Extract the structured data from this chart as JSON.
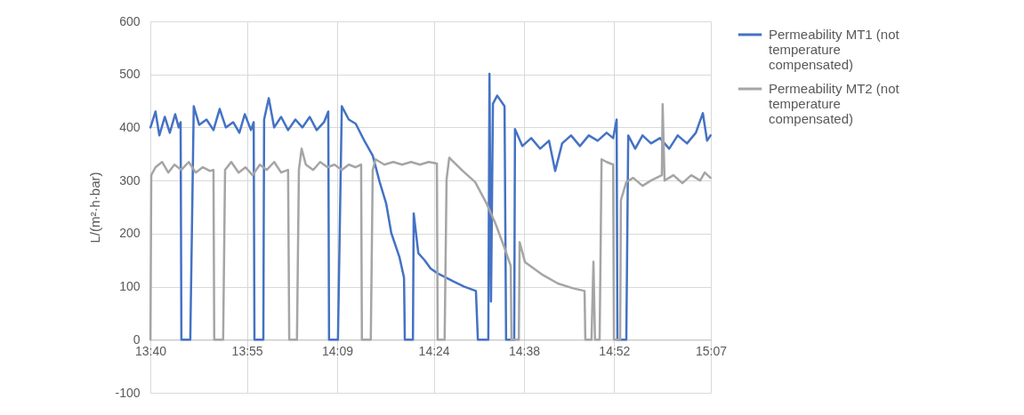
{
  "chart_data": {
    "type": "line",
    "ylabel": "L/(m²·h·bar)",
    "xlim": [
      13.6667,
      15.1167
    ],
    "ylim": [
      -100,
      600
    ],
    "xticks": [
      {
        "value": 13.6667,
        "label": "13:40"
      },
      {
        "value": 13.9167,
        "label": "13:55"
      },
      {
        "value": 14.15,
        "label": "14:09"
      },
      {
        "value": 14.4,
        "label": "14:24"
      },
      {
        "value": 14.6333,
        "label": "14:38"
      },
      {
        "value": 14.8667,
        "label": "14:52"
      },
      {
        "value": 15.1167,
        "label": "15:07"
      }
    ],
    "yticks": [
      -100,
      0,
      100,
      200,
      300,
      400,
      500,
      600
    ],
    "grid": true,
    "legend": "right",
    "marker": "none",
    "line_style": "solid",
    "series": [
      {
        "name": "Permeability MT1 (not temperature compensated)",
        "color": "#4472c4",
        "x": [
          13.667,
          13.68,
          13.69,
          13.704,
          13.717,
          13.731,
          13.74,
          13.745,
          13.747,
          13.77,
          13.779,
          13.793,
          13.812,
          13.83,
          13.846,
          13.862,
          13.881,
          13.897,
          13.911,
          13.927,
          13.934,
          13.936,
          13.959,
          13.961,
          13.973,
          13.987,
          14.005,
          14.023,
          14.042,
          14.06,
          14.079,
          14.097,
          14.116,
          14.127,
          14.129,
          14.152,
          14.162,
          14.18,
          14.198,
          14.221,
          14.242,
          14.26,
          14.277,
          14.29,
          14.311,
          14.323,
          14.325,
          14.346,
          14.348,
          14.36,
          14.376,
          14.392,
          14.41,
          14.445,
          14.479,
          14.509,
          14.514,
          14.541,
          14.544,
          14.548,
          14.553,
          14.564,
          14.583,
          14.587,
          14.608,
          14.61,
          14.629,
          14.652,
          14.675,
          14.698,
          14.714,
          14.732,
          14.755,
          14.778,
          14.801,
          14.824,
          14.847,
          14.864,
          14.873,
          14.875,
          14.898,
          14.903,
          14.921,
          14.94,
          14.962,
          14.985,
          15.009,
          15.031,
          15.055,
          15.078,
          15.096,
          15.107,
          15.116
        ],
        "values": [
          400,
          430,
          385,
          420,
          390,
          425,
          400,
          410,
          0,
          0,
          440,
          405,
          415,
          395,
          435,
          400,
          410,
          390,
          425,
          395,
          410,
          0,
          0,
          415,
          455,
          400,
          420,
          395,
          415,
          400,
          420,
          395,
          410,
          430,
          0,
          0,
          440,
          415,
          407,
          374,
          347,
          297,
          256,
          201,
          156,
          117,
          0,
          0,
          238,
          163,
          150,
          134,
          125,
          112,
          100,
          92,
          0,
          0,
          501,
          72,
          445,
          460,
          440,
          0,
          0,
          397,
          365,
          380,
          360,
          375,
          318,
          370,
          385,
          365,
          385,
          375,
          390,
          380,
          415,
          0,
          0,
          385,
          360,
          385,
          370,
          380,
          360,
          385,
          370,
          390,
          427,
          375,
          385
        ]
      },
      {
        "name": "Permeability MT2 (not temperature compensated)",
        "color": "#a5a5a5",
        "x": [
          13.667,
          13.669,
          13.68,
          13.697,
          13.713,
          13.729,
          13.747,
          13.766,
          13.784,
          13.802,
          13.821,
          13.83,
          13.832,
          13.855,
          13.86,
          13.876,
          13.895,
          13.913,
          13.931,
          13.95,
          13.968,
          13.987,
          14.005,
          14.023,
          14.026,
          14.046,
          14.051,
          14.058,
          14.069,
          14.088,
          14.106,
          14.125,
          14.143,
          14.162,
          14.18,
          14.198,
          14.212,
          14.214,
          14.237,
          14.242,
          14.249,
          14.272,
          14.295,
          14.318,
          14.341,
          14.364,
          14.387,
          14.408,
          14.41,
          14.428,
          14.433,
          14.44,
          14.475,
          14.507,
          14.537,
          14.56,
          14.583,
          14.599,
          14.601,
          14.62,
          14.622,
          14.636,
          14.682,
          14.721,
          14.76,
          14.79,
          14.792,
          14.808,
          14.813,
          14.817,
          14.829,
          14.834,
          14.847,
          14.864,
          14.866,
          14.882,
          14.884,
          14.898,
          14.916,
          14.94,
          14.962,
          14.99,
          14.992,
          14.997,
          15.02,
          15.043,
          15.066,
          15.089,
          15.101,
          15.116
        ],
        "values": [
          0,
          310,
          325,
          335,
          315,
          330,
          320,
          335,
          315,
          325,
          318,
          320,
          0,
          0,
          320,
          335,
          315,
          325,
          310,
          330,
          320,
          335,
          315,
          320,
          0,
          0,
          320,
          360,
          330,
          320,
          335,
          325,
          330,
          320,
          330,
          325,
          330,
          0,
          0,
          320,
          340,
          330,
          335,
          330,
          335,
          330,
          335,
          332,
          0,
          0,
          302,
          343,
          318,
          297,
          256,
          218,
          173,
          139,
          0,
          0,
          184,
          146,
          122,
          106,
          97,
          92,
          0,
          0,
          147,
          0,
          0,
          340,
          335,
          330,
          0,
          0,
          263,
          297,
          305,
          290,
          300,
          310,
          444,
          300,
          310,
          295,
          310,
          300,
          315,
          305
        ]
      }
    ]
  }
}
